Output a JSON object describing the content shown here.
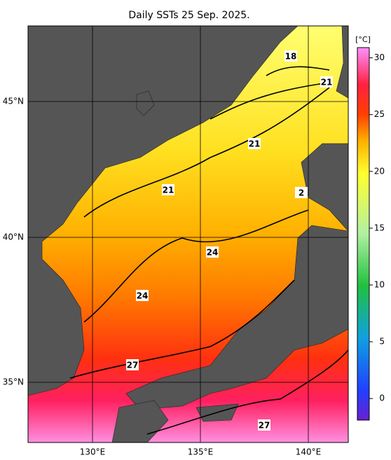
{
  "title": "Daily SSTs 25 Sep. 2025.",
  "map": {
    "x_labels": [
      "130°E",
      "135°E",
      "140°E"
    ],
    "y_labels": [
      "45°N",
      "40°N",
      "35°N"
    ],
    "contour_labels": [
      18,
      21,
      21,
      21,
      2,
      24,
      24,
      27,
      27
    ]
  },
  "colorbar": {
    "unit": "[°C]",
    "lim": [
      -1.9,
      30.9
    ],
    "ticks": [
      0,
      5,
      10,
      15,
      20,
      25,
      30
    ]
  }
}
